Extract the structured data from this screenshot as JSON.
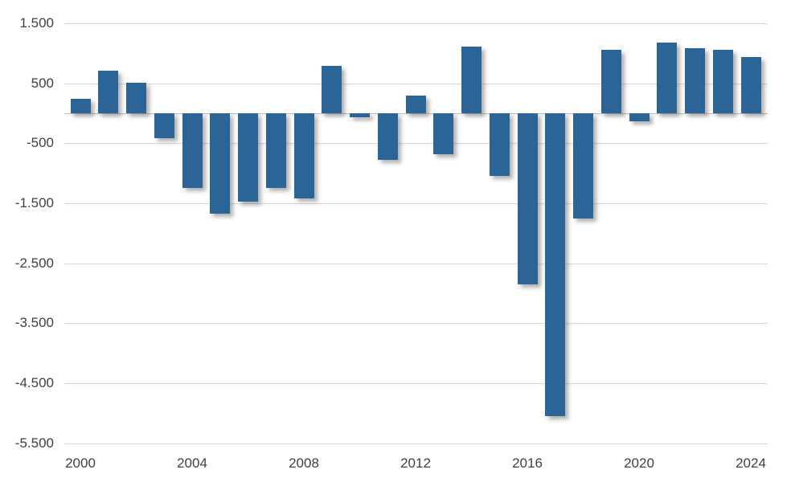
{
  "chart_data": {
    "type": "bar",
    "title": "",
    "xlabel": "",
    "ylabel": "",
    "legend": "none",
    "grid": true,
    "ylim": [
      -5500,
      1500
    ],
    "y_tick_step": 1000,
    "categories": [
      2000,
      2001,
      2002,
      2003,
      2004,
      2005,
      2006,
      2007,
      2008,
      2009,
      2010,
      2011,
      2012,
      2013,
      2014,
      2015,
      2016,
      2017,
      2018,
      2019,
      2020,
      2021,
      2022,
      2023,
      2024
    ],
    "values": [
      240,
      710,
      510,
      -420,
      -1250,
      -1670,
      -1470,
      -1240,
      -1420,
      790,
      -70,
      -780,
      290,
      -680,
      1110,
      -1040,
      -2850,
      -5050,
      -1760,
      1060,
      -130,
      1180,
      1090,
      1060,
      940
    ],
    "y_ticks": [
      {
        "value": 1500,
        "label": "1.500"
      },
      {
        "value": 500,
        "label": "500"
      },
      {
        "value": -500,
        "label": "-500"
      },
      {
        "value": -1500,
        "label": "-1.500"
      },
      {
        "value": -2500,
        "label": "-2.500"
      },
      {
        "value": -3500,
        "label": "-3.500"
      },
      {
        "value": -4500,
        "label": "-4.500"
      },
      {
        "value": -5500,
        "label": "-5.500"
      }
    ],
    "x_ticks": [
      {
        "value": 2000,
        "label": "2000"
      },
      {
        "value": 2004,
        "label": "2004"
      },
      {
        "value": 2008,
        "label": "2008"
      },
      {
        "value": 2012,
        "label": "2012"
      },
      {
        "value": 2016,
        "label": "2016"
      },
      {
        "value": 2020,
        "label": "2020"
      },
      {
        "value": 2024,
        "label": "2024"
      }
    ]
  },
  "colors": {
    "bar": "#2b6598",
    "gridline": "#d9d9d9",
    "axis_line": "#bfbfbf",
    "tick_text": "#404040",
    "background": "#ffffff"
  }
}
